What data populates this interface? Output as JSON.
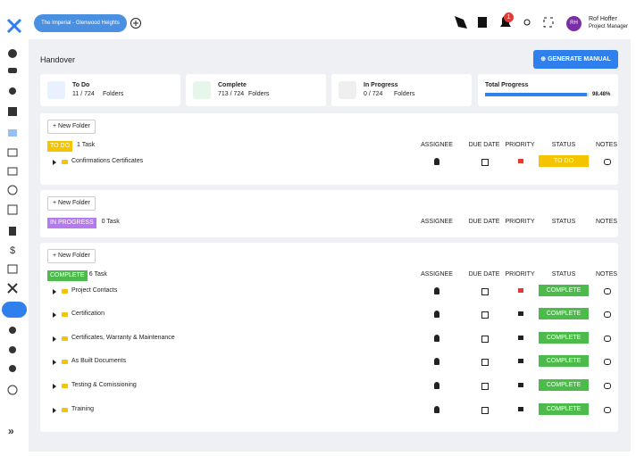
{
  "header": {
    "project": "The Imperial - Glenwood Heights",
    "notification_count": 1,
    "user_initials": "RH",
    "user_name": "Rof Hoffer",
    "user_role": "Project Manager"
  },
  "page": {
    "title": "Handover",
    "action": "GENERATE MANUAL"
  },
  "stats": [
    {
      "label": "To Do",
      "value": "11 / 724",
      "unit": "Folders"
    },
    {
      "label": "Complete",
      "value": "713 / 724",
      "unit": "Folders"
    },
    {
      "label": "In Progress",
      "value": "0 / 724",
      "unit": "Folders"
    }
  ],
  "progress": {
    "label": "Total Progress",
    "value": 98.48,
    "value_label": "98.48%"
  },
  "new_folder": "New Folder",
  "columns": [
    "ASSIGNEE",
    "DUE DATE",
    "PRIORITY",
    "STATUS",
    "NOTES"
  ],
  "sections": [
    {
      "status": "TO DO",
      "color": "#f5c400",
      "count": "1 Task",
      "rows": [
        {
          "name": "Confirmations Certificates",
          "flag_color": "#e53935"
        }
      ]
    },
    {
      "status": "IN PROGRESS",
      "color": "#b57bee",
      "count": "0 Task",
      "rows": []
    },
    {
      "status": "COMPLETE",
      "color": "#4cbb4c",
      "count": "6 Task",
      "rows": [
        {
          "name": "Project Contacts",
          "flag_color": "#e53935"
        },
        {
          "name": "Certification",
          "flag_color": "#222222"
        },
        {
          "name": "Certificates, Warranty & Maintenance",
          "flag_color": "#222222"
        },
        {
          "name": "As Built Documents",
          "flag_color": "#222222"
        },
        {
          "name": "Testing & Comissioning",
          "flag_color": "#222222"
        },
        {
          "name": "Training",
          "flag_color": "#222222"
        }
      ]
    }
  ]
}
